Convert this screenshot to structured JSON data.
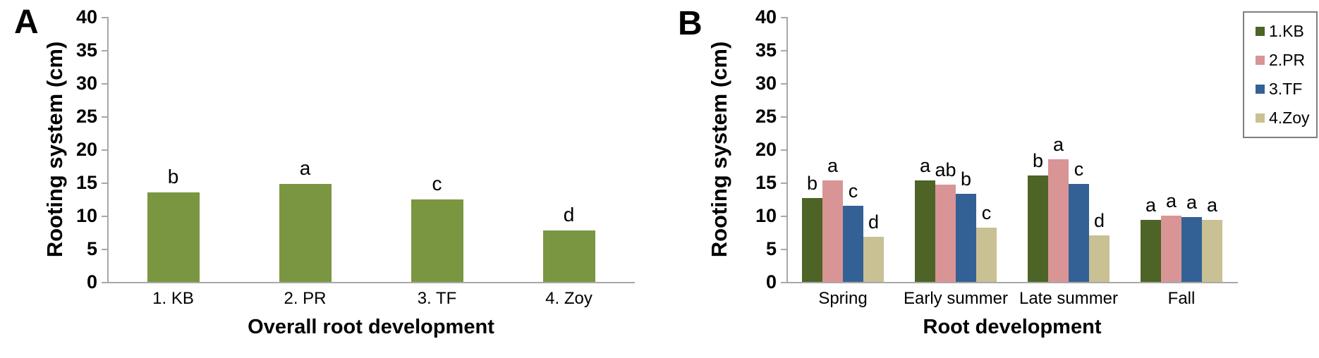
{
  "colors": {
    "axis": "#a8a8a8",
    "text": "#000000",
    "legend_border": "#7f7f7f",
    "panel_a_bar": "#7b9640"
  },
  "chart_data": [
    {
      "type": "bar",
      "panel_label": "A",
      "title": "",
      "ylabel": "Rooting system (cm)",
      "xlabel": "Overall root development",
      "ylim": [
        0,
        40
      ],
      "yticks": [
        0,
        5,
        10,
        15,
        20,
        25,
        30,
        35,
        40
      ],
      "grid": false,
      "legend_position": "none",
      "categories": [
        "1. KB",
        "2. PR",
        "3. TF",
        "4. Zoy"
      ],
      "values": [
        13.5,
        14.8,
        12.4,
        7.8
      ],
      "sig_letters": [
        "b",
        "a",
        "c",
        "d"
      ],
      "bar_color": "#7b9640"
    },
    {
      "type": "grouped-bar",
      "panel_label": "B",
      "title": "",
      "ylabel": "Rooting system (cm)",
      "xlabel": "Root development",
      "ylim": [
        0,
        40
      ],
      "yticks": [
        0,
        5,
        10,
        15,
        20,
        25,
        30,
        35,
        40
      ],
      "grid": false,
      "legend_position": "top-right-box",
      "categories": [
        "Spring",
        "Early summer",
        "Late summer",
        "Fall"
      ],
      "series": [
        {
          "name": "1.KB",
          "color": "#4d6426",
          "values": [
            12.7,
            15.3,
            16.1,
            9.4
          ],
          "sig_letters": [
            "b",
            "a",
            "b",
            "a"
          ]
        },
        {
          "name": "2.PR",
          "color": "#d99595",
          "values": [
            15.3,
            14.7,
            18.5,
            10.0
          ],
          "sig_letters": [
            "a",
            "ab",
            "a",
            "a"
          ]
        },
        {
          "name": "3.TF",
          "color": "#346195",
          "values": [
            11.5,
            13.3,
            14.8,
            9.8
          ],
          "sig_letters": [
            "c",
            "b",
            "c",
            "a"
          ]
        },
        {
          "name": "4.Zoy",
          "color": "#c9c094",
          "values": [
            6.8,
            8.2,
            7.0,
            9.4
          ],
          "sig_letters": [
            "d",
            "c",
            "d",
            "a"
          ]
        }
      ]
    }
  ]
}
